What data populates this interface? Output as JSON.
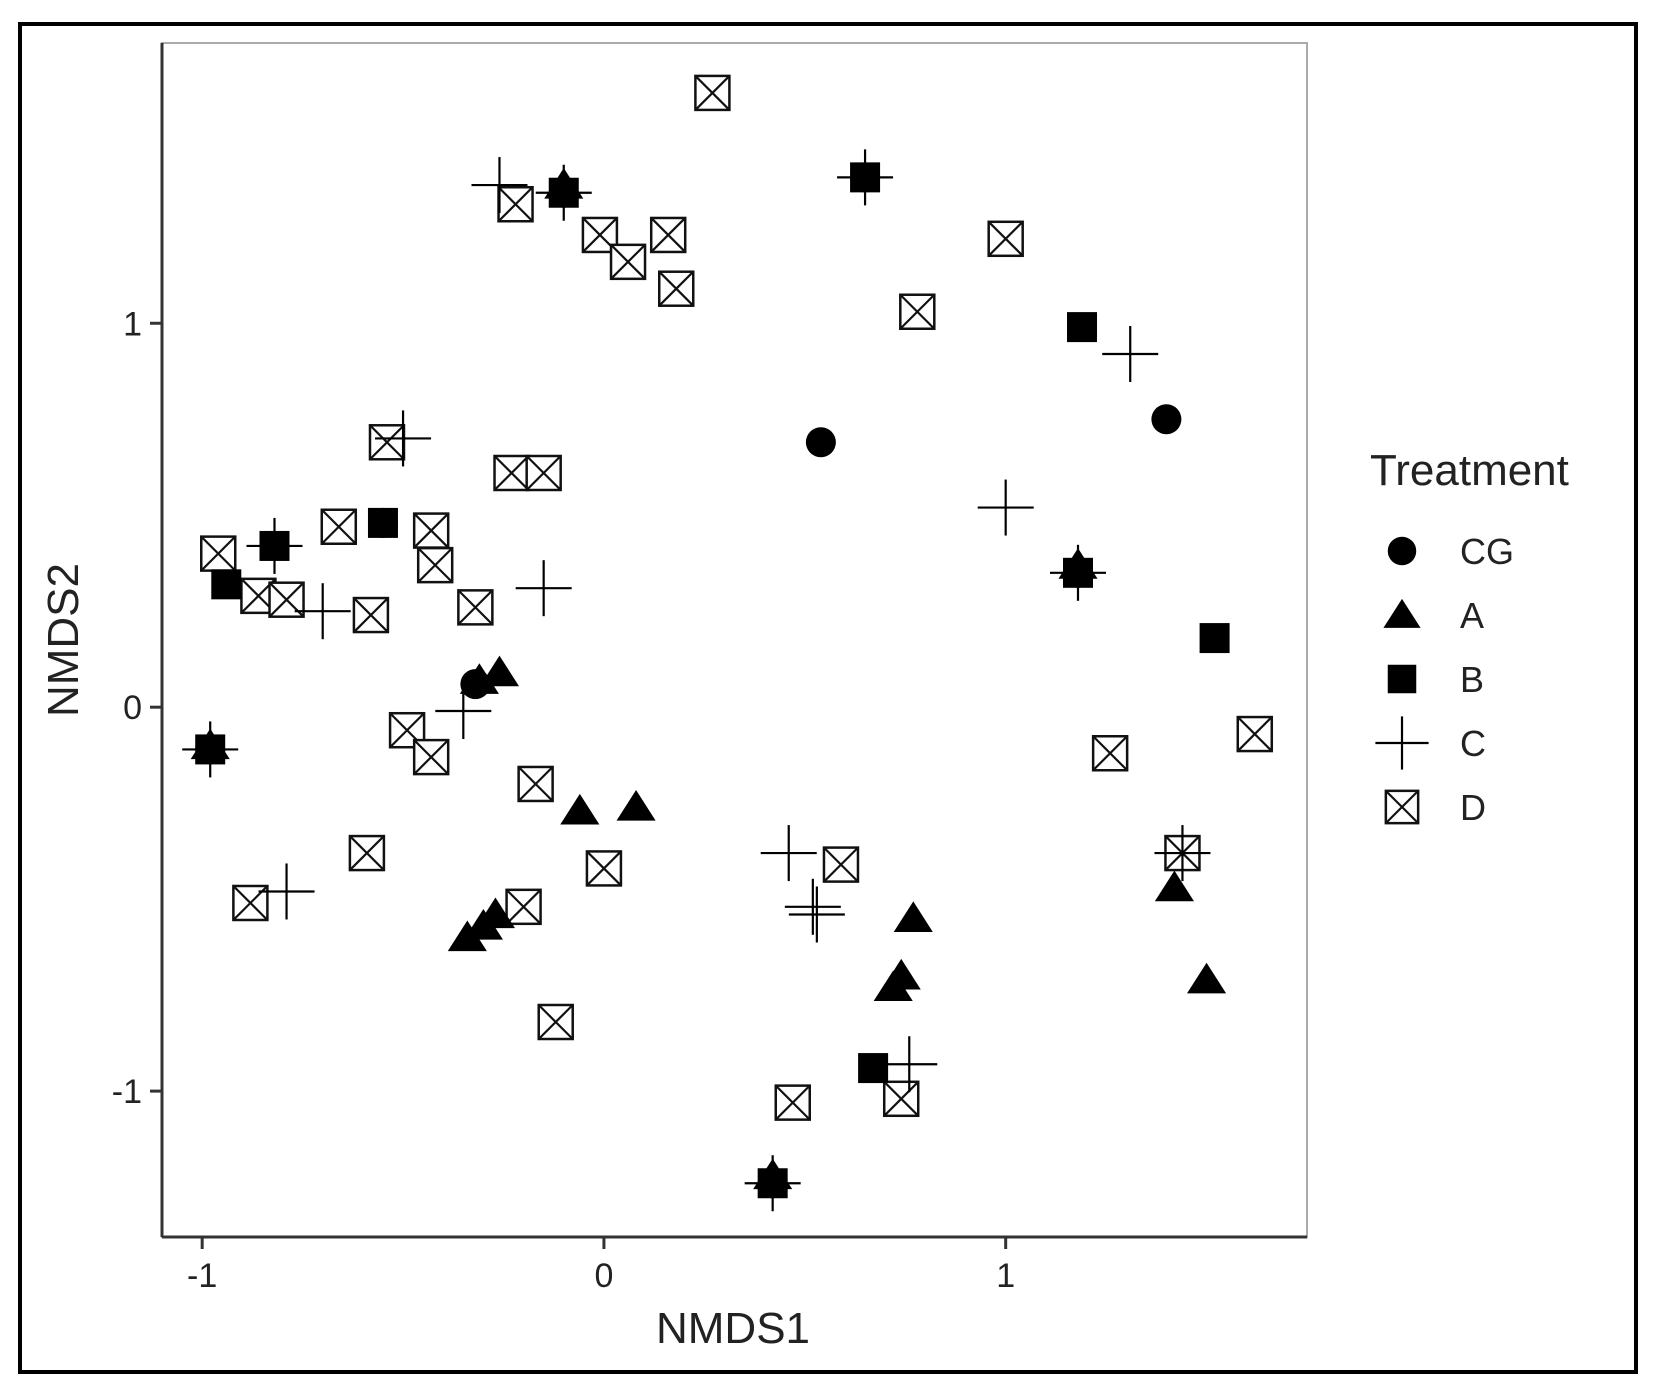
{
  "chart_data": {
    "type": "scatter",
    "title": "",
    "xlabel": "NMDS1",
    "ylabel": "NMDS2",
    "xlim": [
      -1.1,
      1.75
    ],
    "ylim": [
      -1.38,
      1.73
    ],
    "xticks": [
      -1,
      0,
      1
    ],
    "yticks": [
      -1,
      0,
      1
    ],
    "legend_title": "Treatment",
    "legend_position": "right",
    "series": [
      {
        "name": "CG",
        "marker": "circle",
        "points": [
          {
            "x": 0.54,
            "y": 0.69
          },
          {
            "x": 1.4,
            "y": 0.75
          },
          {
            "x": -0.55,
            "y": 0.48
          },
          {
            "x": -0.32,
            "y": 0.06
          },
          {
            "x": -0.98,
            "y": -0.11
          },
          {
            "x": -0.1,
            "y": 1.34
          },
          {
            "x": 0.65,
            "y": 1.38
          },
          {
            "x": 1.18,
            "y": 0.35
          },
          {
            "x": 0.42,
            "y": -1.24
          }
        ]
      },
      {
        "name": "A",
        "marker": "triangle",
        "points": [
          {
            "x": -0.26,
            "y": 0.09
          },
          {
            "x": -0.31,
            "y": 0.07
          },
          {
            "x": -0.06,
            "y": -0.27
          },
          {
            "x": 0.08,
            "y": -0.26
          },
          {
            "x": -0.27,
            "y": -0.54
          },
          {
            "x": -0.3,
            "y": -0.57
          },
          {
            "x": -0.34,
            "y": -0.6
          },
          {
            "x": 0.77,
            "y": -0.55
          },
          {
            "x": 0.74,
            "y": -0.7
          },
          {
            "x": 0.72,
            "y": -0.73
          },
          {
            "x": 1.42,
            "y": -0.47
          },
          {
            "x": 1.5,
            "y": -0.71
          },
          {
            "x": -0.98,
            "y": -0.1
          },
          {
            "x": -0.1,
            "y": 1.36
          },
          {
            "x": 1.18,
            "y": 0.37
          },
          {
            "x": 0.42,
            "y": -1.22
          }
        ]
      },
      {
        "name": "B",
        "marker": "square",
        "points": [
          {
            "x": -0.82,
            "y": 0.42
          },
          {
            "x": -0.94,
            "y": 0.32
          },
          {
            "x": -0.55,
            "y": 0.48
          },
          {
            "x": -0.98,
            "y": -0.11
          },
          {
            "x": -0.1,
            "y": 1.34
          },
          {
            "x": 0.65,
            "y": 1.38
          },
          {
            "x": 1.19,
            "y": 0.99
          },
          {
            "x": 1.52,
            "y": 0.18
          },
          {
            "x": 1.18,
            "y": 0.35
          },
          {
            "x": 0.67,
            "y": -0.94
          },
          {
            "x": 0.42,
            "y": -1.24
          }
        ]
      },
      {
        "name": "C",
        "marker": "plus",
        "points": [
          {
            "x": -0.5,
            "y": 0.7
          },
          {
            "x": -0.82,
            "y": 0.42
          },
          {
            "x": -0.7,
            "y": 0.25
          },
          {
            "x": -0.15,
            "y": 0.31
          },
          {
            "x": -0.35,
            "y": -0.01
          },
          {
            "x": -0.98,
            "y": -0.11
          },
          {
            "x": -0.79,
            "y": -0.48
          },
          {
            "x": -0.26,
            "y": 1.36
          },
          {
            "x": -0.1,
            "y": 1.34
          },
          {
            "x": 0.65,
            "y": 1.38
          },
          {
            "x": 1.31,
            "y": 0.92
          },
          {
            "x": 1.0,
            "y": 0.52
          },
          {
            "x": 1.18,
            "y": 0.35
          },
          {
            "x": 0.46,
            "y": -0.38
          },
          {
            "x": 0.52,
            "y": -0.52
          },
          {
            "x": 0.53,
            "y": -0.54
          },
          {
            "x": 0.76,
            "y": -0.93
          },
          {
            "x": 1.44,
            "y": -0.38
          },
          {
            "x": 0.42,
            "y": -1.24
          }
        ]
      },
      {
        "name": "D",
        "marker": "boxx",
        "points": [
          {
            "x": 0.27,
            "y": 1.6
          },
          {
            "x": -0.22,
            "y": 1.31
          },
          {
            "x": -0.01,
            "y": 1.23
          },
          {
            "x": 0.06,
            "y": 1.16
          },
          {
            "x": 0.16,
            "y": 1.23
          },
          {
            "x": 0.18,
            "y": 1.09
          },
          {
            "x": 1.0,
            "y": 1.22
          },
          {
            "x": 0.78,
            "y": 1.03
          },
          {
            "x": -0.54,
            "y": 0.69
          },
          {
            "x": -0.23,
            "y": 0.61
          },
          {
            "x": -0.15,
            "y": 0.61
          },
          {
            "x": -0.66,
            "y": 0.47
          },
          {
            "x": -0.43,
            "y": 0.46
          },
          {
            "x": -0.42,
            "y": 0.37
          },
          {
            "x": -0.96,
            "y": 0.4
          },
          {
            "x": -0.86,
            "y": 0.29
          },
          {
            "x": -0.79,
            "y": 0.28
          },
          {
            "x": -0.58,
            "y": 0.24
          },
          {
            "x": -0.32,
            "y": 0.26
          },
          {
            "x": -0.49,
            "y": -0.06
          },
          {
            "x": -0.43,
            "y": -0.13
          },
          {
            "x": -0.17,
            "y": -0.2
          },
          {
            "x": -0.59,
            "y": -0.38
          },
          {
            "x": 0.0,
            "y": -0.42
          },
          {
            "x": -0.88,
            "y": -0.51
          },
          {
            "x": -0.2,
            "y": -0.52
          },
          {
            "x": -0.12,
            "y": -0.82
          },
          {
            "x": 0.59,
            "y": -0.41
          },
          {
            "x": 0.47,
            "y": -1.03
          },
          {
            "x": 0.74,
            "y": -1.02
          },
          {
            "x": 1.26,
            "y": -0.12
          },
          {
            "x": 1.62,
            "y": -0.07
          },
          {
            "x": 1.44,
            "y": -0.38
          }
        ]
      }
    ]
  }
}
